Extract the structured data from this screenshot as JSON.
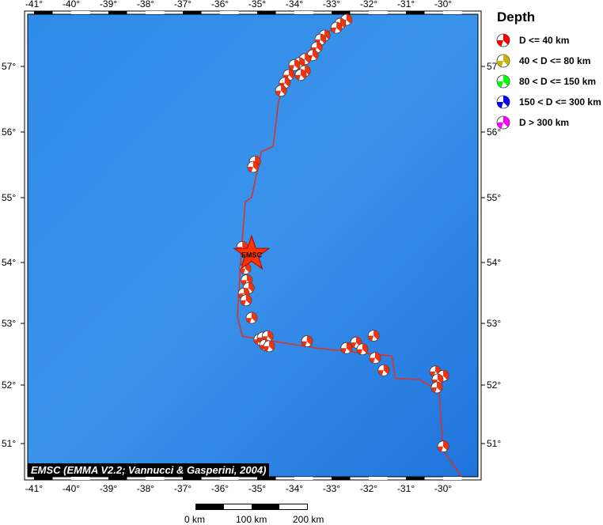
{
  "legend": {
    "title": "Depth",
    "items": [
      {
        "label": "D <= 40 km",
        "color": "#ff0000"
      },
      {
        "label": "40 < D <= 80 km",
        "color": "#c8b400"
      },
      {
        "label": "80 < D <= 150 km",
        "color": "#00ff00"
      },
      {
        "label": "150 < D <= 300 km",
        "color": "#0000ff"
      },
      {
        "label": "D > 300 km",
        "color": "#ff00ff"
      }
    ]
  },
  "credit": "EMSC (EMMA V2.2; Vannucci & Gasperini, 2004)",
  "scale_bar": {
    "labels": [
      "0 km",
      "100 km",
      "200 km"
    ]
  },
  "axes": {
    "lon_ticks": [
      -41,
      -40,
      -39,
      -38,
      -37,
      -36,
      -35,
      -34,
      -33,
      -32,
      -31,
      -30
    ],
    "lat_ticks": [
      51,
      52,
      53,
      54,
      55,
      56,
      57
    ]
  },
  "epicenter": {
    "label": "EMSC",
    "lon": -35.15,
    "lat": 54.13,
    "color": "#ff3300"
  },
  "ridge": [
    [
      -32.55,
      57.8
    ],
    [
      -33.19,
      57.47
    ],
    [
      -33.72,
      57.17
    ],
    [
      -34.26,
      56.81
    ],
    [
      -34.43,
      56.45
    ],
    [
      -34.57,
      55.78
    ],
    [
      -34.89,
      55.7
    ],
    [
      -35.15,
      55.0
    ],
    [
      -35.32,
      54.94
    ],
    [
      -35.43,
      54.15
    ],
    [
      -35.53,
      53.12
    ],
    [
      -35.4,
      52.79
    ],
    [
      -33.4,
      52.6
    ],
    [
      -31.38,
      52.47
    ],
    [
      -31.28,
      52.11
    ],
    [
      -30.64,
      52.09
    ],
    [
      -30.11,
      51.9
    ],
    [
      -30.0,
      50.88
    ],
    [
      -29.51,
      50.44
    ]
  ],
  "events": [
    [
      -32.6,
      57.71
    ],
    [
      -32.77,
      57.65
    ],
    [
      -32.87,
      57.59
    ],
    [
      -33.19,
      57.47
    ],
    [
      -33.3,
      57.41
    ],
    [
      -33.4,
      57.29
    ],
    [
      -33.51,
      57.17
    ],
    [
      -33.72,
      57.11
    ],
    [
      -33.87,
      57.05
    ],
    [
      -34.0,
      57.02
    ],
    [
      -33.72,
      56.93
    ],
    [
      -33.83,
      56.87
    ],
    [
      -34.15,
      56.87
    ],
    [
      -34.26,
      56.75
    ],
    [
      -34.36,
      56.63
    ],
    [
      -35.06,
      55.55
    ],
    [
      -35.11,
      55.47
    ],
    [
      -35.4,
      54.24
    ],
    [
      -35.32,
      53.9
    ],
    [
      -35.28,
      53.71
    ],
    [
      -35.23,
      53.58
    ],
    [
      -35.36,
      53.49
    ],
    [
      -35.3,
      53.38
    ],
    [
      -35.15,
      53.09
    ],
    [
      -34.94,
      52.74
    ],
    [
      -34.85,
      52.77
    ],
    [
      -34.72,
      52.79
    ],
    [
      -34.79,
      52.65
    ],
    [
      -34.68,
      52.63
    ],
    [
      -33.66,
      52.71
    ],
    [
      -32.6,
      52.6
    ],
    [
      -32.34,
      52.69
    ],
    [
      -32.17,
      52.58
    ],
    [
      -31.87,
      52.8
    ],
    [
      -31.83,
      52.44
    ],
    [
      -31.6,
      52.24
    ],
    [
      -30.21,
      52.22
    ],
    [
      -30.0,
      52.15
    ],
    [
      -30.15,
      52.09
    ],
    [
      -30.17,
      51.96
    ],
    [
      -30.0,
      50.95
    ]
  ]
}
